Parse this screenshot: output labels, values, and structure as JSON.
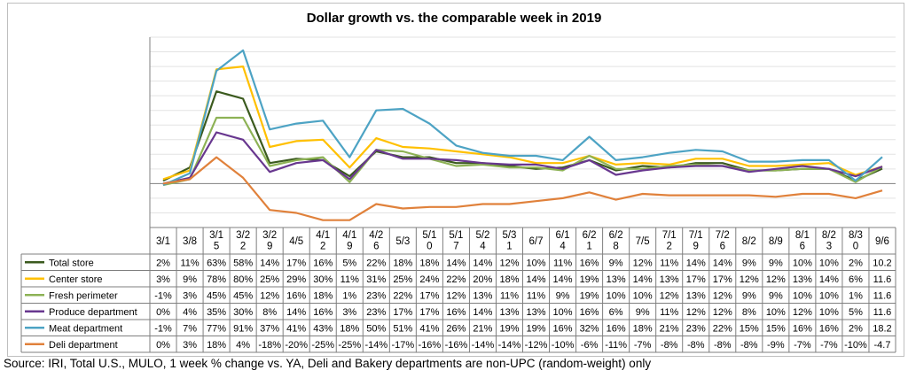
{
  "title": "Dollar growth vs. the comparable week in 2019",
  "source": "Source: IRI, Total U.S., MULO, 1 week % change vs. YA, Deli and Bakery departments are non-UPC (random-weight) only",
  "chart_data": {
    "type": "line",
    "title": "Dollar growth vs. the comparable week in 2019",
    "grid": true,
    "legend": "data-table-left",
    "categories": [
      [
        "3/1"
      ],
      [
        "3/8"
      ],
      [
        "3/1",
        "5"
      ],
      [
        "3/2",
        "2"
      ],
      [
        "3/2",
        "9"
      ],
      [
        "4/5"
      ],
      [
        "4/1",
        "2"
      ],
      [
        "4/1",
        "9"
      ],
      [
        "4/2",
        "6"
      ],
      [
        "5/3"
      ],
      [
        "5/1",
        "0"
      ],
      [
        "5/1",
        "7"
      ],
      [
        "5/2",
        "4"
      ],
      [
        "5/3",
        "1"
      ],
      [
        "6/7"
      ],
      [
        "6/1",
        "4"
      ],
      [
        "6/2",
        "1"
      ],
      [
        "6/2",
        "8"
      ],
      [
        "7/5"
      ],
      [
        "7/1",
        "2"
      ],
      [
        "7/1",
        "9"
      ],
      [
        "7/2",
        "6"
      ],
      [
        "8/2"
      ],
      [
        "8/9"
      ],
      [
        "8/1",
        "6"
      ],
      [
        "8/2",
        "3"
      ],
      [
        "8/3",
        "0"
      ],
      [
        "9/6"
      ]
    ],
    "ylim": [
      -30,
      100
    ],
    "series": [
      {
        "name": "Total store",
        "color": "#3b5a1e",
        "values": [
          2,
          11,
          63,
          58,
          14,
          17,
          16,
          5,
          22,
          18,
          18,
          14,
          14,
          12,
          10,
          11,
          16,
          9,
          12,
          11,
          14,
          14,
          9,
          9,
          10,
          10,
          2,
          10.2
        ],
        "labels": [
          "2%",
          "11%",
          "63%",
          "58%",
          "14%",
          "17%",
          "16%",
          "5%",
          "22%",
          "18%",
          "18%",
          "14%",
          "14%",
          "12%",
          "10%",
          "11%",
          "16%",
          "9%",
          "12%",
          "11%",
          "14%",
          "14%",
          "9%",
          "9%",
          "10%",
          "10%",
          "2%",
          "10.2"
        ]
      },
      {
        "name": "Center store",
        "color": "#ffc000",
        "values": [
          3,
          9,
          78,
          80,
          25,
          29,
          30,
          11,
          31,
          25,
          24,
          22,
          20,
          18,
          14,
          14,
          19,
          13,
          14,
          13,
          17,
          17,
          12,
          12,
          13,
          14,
          6,
          11.6
        ],
        "labels": [
          "3%",
          "9%",
          "78%",
          "80%",
          "25%",
          "29%",
          "30%",
          "11%",
          "31%",
          "25%",
          "24%",
          "22%",
          "20%",
          "18%",
          "14%",
          "14%",
          "19%",
          "13%",
          "14%",
          "13%",
          "17%",
          "17%",
          "12%",
          "12%",
          "13%",
          "14%",
          "6%",
          "11.6"
        ]
      },
      {
        "name": "Fresh perimeter",
        "color": "#8db255",
        "values": [
          -1,
          3,
          45,
          45,
          12,
          16,
          18,
          1,
          23,
          22,
          17,
          12,
          13,
          11,
          11,
          9,
          19,
          10,
          10,
          12,
          13,
          12,
          9,
          9,
          10,
          10,
          1,
          11.6
        ],
        "labels": [
          "-1%",
          "3%",
          "45%",
          "45%",
          "12%",
          "16%",
          "18%",
          "1%",
          "23%",
          "22%",
          "17%",
          "12%",
          "13%",
          "11%",
          "11%",
          "9%",
          "19%",
          "10%",
          "10%",
          "12%",
          "13%",
          "12%",
          "9%",
          "9%",
          "10%",
          "10%",
          "1%",
          "11.6"
        ]
      },
      {
        "name": "Produce department",
        "color": "#68378f",
        "values": [
          0,
          4,
          35,
          30,
          8,
          14,
          16,
          3,
          23,
          17,
          17,
          16,
          14,
          13,
          13,
          10,
          16,
          6,
          9,
          11,
          12,
          12,
          8,
          10,
          12,
          10,
          5,
          11.6
        ],
        "labels": [
          "0%",
          "4%",
          "35%",
          "30%",
          "8%",
          "14%",
          "16%",
          "3%",
          "23%",
          "17%",
          "17%",
          "16%",
          "14%",
          "13%",
          "13%",
          "10%",
          "16%",
          "6%",
          "9%",
          "11%",
          "12%",
          "12%",
          "8%",
          "10%",
          "12%",
          "10%",
          "5%",
          "11.6"
        ]
      },
      {
        "name": "Meat department",
        "color": "#4da3c4",
        "values": [
          -1,
          7,
          77,
          91,
          37,
          41,
          43,
          18,
          50,
          51,
          41,
          26,
          21,
          19,
          19,
          16,
          32,
          16,
          18,
          21,
          23,
          22,
          15,
          15,
          16,
          16,
          2,
          18.2
        ],
        "labels": [
          "-1%",
          "7%",
          "77%",
          "91%",
          "37%",
          "41%",
          "43%",
          "18%",
          "50%",
          "51%",
          "41%",
          "26%",
          "21%",
          "19%",
          "19%",
          "16%",
          "32%",
          "16%",
          "18%",
          "21%",
          "23%",
          "22%",
          "15%",
          "15%",
          "16%",
          "16%",
          "2%",
          "18.2"
        ]
      },
      {
        "name": "Deli department",
        "color": "#e0813b",
        "values": [
          0,
          3,
          18,
          4,
          -18,
          -20,
          -25,
          -25,
          -14,
          -17,
          -16,
          -16,
          -14,
          -14,
          -12,
          -10,
          -6,
          -11,
          -7,
          -8,
          -8,
          -8,
          -8,
          -9,
          -7,
          -7,
          -10,
          -4.7
        ],
        "labels": [
          "0%",
          "3%",
          "18%",
          "4%",
          "-18%",
          "-20%",
          "-25%",
          "-25%",
          "-14%",
          "-17%",
          "-16%",
          "-16%",
          "-14%",
          "-14%",
          "-12%",
          "-10%",
          "-6%",
          "-11%",
          "-7%",
          "-8%",
          "-8%",
          "-8%",
          "-8%",
          "-9%",
          "-7%",
          "-7%",
          "-10%",
          "-4.7"
        ]
      }
    ]
  }
}
